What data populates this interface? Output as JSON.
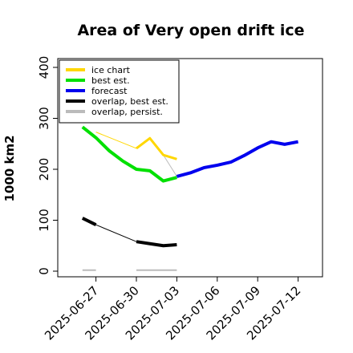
{
  "chart_data": {
    "type": "line",
    "title": "Area of Very open drift ice",
    "xlabel": "",
    "ylabel": "1000 km2",
    "ylim": [
      0,
      400
    ],
    "yticks": [
      0,
      100,
      200,
      300,
      400
    ],
    "xlim": [
      "2025-06-25",
      "2025-07-13"
    ],
    "xticks": [
      {
        "date": "2025-06-27",
        "label": "2025-06-27",
        "color": "#000000"
      },
      {
        "date": "2025-06-30",
        "label": "2025-06-30",
        "color": "#000000"
      },
      {
        "date": "2025-07-03",
        "label": "2025-07-03",
        "color": "#228B22"
      },
      {
        "date": "2025-07-06",
        "label": "2025-07-06",
        "color": "#000000"
      },
      {
        "date": "2025-07-09",
        "label": "2025-07-09",
        "color": "#000000"
      },
      {
        "date": "2025-07-12",
        "label": "2025-07-12",
        "color": "#000000"
      }
    ],
    "legend": "top-left",
    "series": [
      {
        "name": "ice chart",
        "color": "#FFD700",
        "points": [
          [
            "2025-06-26",
            284
          ],
          [
            "2025-06-30",
            241
          ],
          [
            "2025-07-01",
            261
          ],
          [
            "2025-07-02",
            228
          ],
          [
            "2025-07-03",
            220
          ]
        ]
      },
      {
        "name": "best est.",
        "color": "#00E000",
        "points": [
          [
            "2025-06-26",
            283
          ],
          [
            "2025-06-27",
            262
          ],
          [
            "2025-06-28",
            236
          ],
          [
            "2025-06-29",
            216
          ],
          [
            "2025-06-30",
            200
          ],
          [
            "2025-07-01",
            197
          ],
          [
            "2025-07-02",
            177
          ],
          [
            "2025-07-03",
            184
          ]
        ]
      },
      {
        "name": "forecast",
        "color": "#0000EE",
        "points": [
          [
            "2025-07-03",
            186
          ],
          [
            "2025-07-04",
            193
          ],
          [
            "2025-07-05",
            203
          ],
          [
            "2025-07-06",
            208
          ],
          [
            "2025-07-07",
            214
          ],
          [
            "2025-07-08",
            227
          ],
          [
            "2025-07-09",
            242
          ],
          [
            "2025-07-10",
            254
          ],
          [
            "2025-07-11",
            249
          ],
          [
            "2025-07-12",
            254
          ]
        ]
      },
      {
        "name": "overlap, best est.",
        "color": "#000000",
        "points": [
          [
            "2025-06-26",
            104
          ],
          [
            "2025-06-27",
            91
          ],
          [
            "2025-06-30",
            58
          ],
          [
            "2025-07-01",
            54
          ],
          [
            "2025-07-02",
            50
          ],
          [
            "2025-07-03",
            52
          ]
        ]
      },
      {
        "name": "overlap, persist.",
        "color": "#BBBBBB",
        "points": [
          [
            "2025-06-26",
            2
          ],
          [
            "2025-06-27",
            2
          ],
          [
            "2025-06-30",
            2
          ],
          [
            "2025-07-01",
            2
          ],
          [
            "2025-07-02",
            2
          ],
          [
            "2025-07-03",
            2
          ]
        ]
      }
    ],
    "extra_lines": [
      {
        "color": "#000000",
        "points": [
          [
            "2025-06-27",
            91
          ],
          [
            "2025-06-30",
            58
          ]
        ]
      },
      {
        "color": "#FFD700",
        "points": [
          [
            "2025-06-27",
            273
          ],
          [
            "2025-06-30",
            241
          ]
        ]
      },
      {
        "color": "#BBBBBB",
        "points": [
          [
            "2025-07-02",
            228
          ],
          [
            "2025-07-03",
            186
          ]
        ]
      }
    ]
  }
}
